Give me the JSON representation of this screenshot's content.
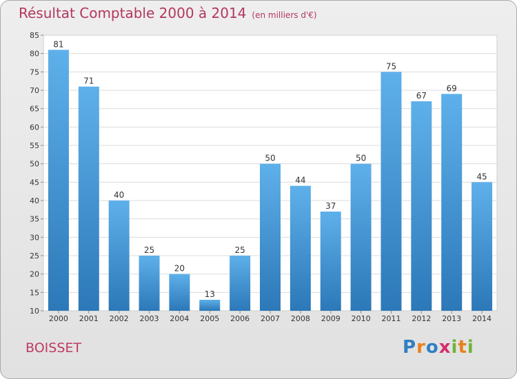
{
  "header": {
    "title": "Résultat Comptable 2000 à 2014",
    "unit": "(en milliers d'€)"
  },
  "footer": {
    "place": "BOISSET",
    "logo": [
      "P",
      "r",
      "o",
      "x",
      "i",
      "t",
      "i"
    ]
  },
  "colors": {
    "title": "#b5365d",
    "bar_top": "#5eb0ea",
    "bar_bottom": "#2c78b8",
    "logo": [
      "#2f7fc4",
      "#e8821e",
      "#2f7fc4",
      "#d62e6e",
      "#72b43a",
      "#e8821e",
      "#72b43a"
    ]
  },
  "chart_data": {
    "type": "bar",
    "title": "Résultat Comptable 2000 à 2014",
    "categories": [
      "2000",
      "2001",
      "2002",
      "2003",
      "2004",
      "2005",
      "2006",
      "2007",
      "2008",
      "2009",
      "2010",
      "2011",
      "2012",
      "2013",
      "2014"
    ],
    "values": [
      81,
      71,
      40,
      25,
      20,
      13,
      25,
      50,
      44,
      37,
      50,
      75,
      67,
      69,
      45
    ],
    "ylim": [
      10,
      85
    ],
    "yticks": [
      10,
      15,
      20,
      25,
      30,
      35,
      40,
      45,
      50,
      55,
      60,
      65,
      70,
      75,
      80,
      85
    ],
    "grid": true,
    "xlabel": "",
    "ylabel": ""
  }
}
